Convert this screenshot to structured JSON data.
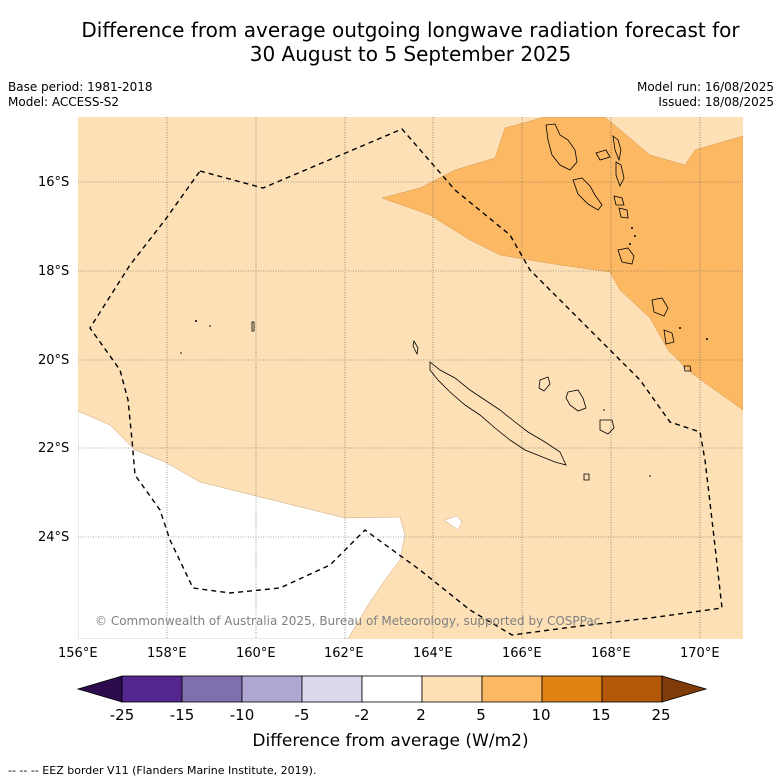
{
  "title_line1": "Difference from average outgoing longwave radiation forecast for",
  "title_line2": "30 August to 5 September 2025",
  "base_period": "Base period: 1981-2018",
  "model": "Model: ACCESS-S2",
  "model_run": "Model run: 16/08/2025",
  "issued": "Issued: 18/08/2025",
  "copyright": "© Commonwealth of Australia 2025, Bureau of Meteorology, supported by COSPPac",
  "lat_ticks": [
    "16°S",
    "18°S",
    "20°S",
    "22°S",
    "24°S"
  ],
  "lon_ticks": [
    "156°E",
    "158°E",
    "160°E",
    "162°E",
    "164°E",
    "166°E",
    "168°E",
    "170°E"
  ],
  "colorbar": {
    "title": "Difference from average (W/m2)",
    "tick_labels": [
      "-25",
      "-15",
      "-10",
      "-5",
      "-2",
      "2",
      "5",
      "10",
      "15",
      "25"
    ],
    "colors": [
      "#2d0b4e",
      "#54278f",
      "#7f6fae",
      "#b0a7d3",
      "#dbdaec",
      "#ffffff",
      "#fde0b6",
      "#fdb863",
      "#e08214",
      "#b35806",
      "#7f3b08"
    ]
  },
  "region_colors": {
    "light": "#fde0b6",
    "medium": "#fdb863",
    "none": "#ffffff"
  },
  "footer": "--  --  -- EEZ border V11 (Flanders Marine Institute, 2019)."
}
